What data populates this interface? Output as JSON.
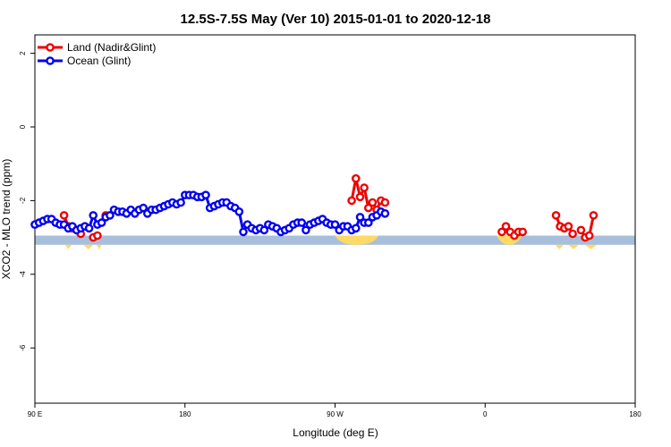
{
  "chart_data": {
    "type": "line",
    "title": "12.5S-7.5S May (Ver 10)   2015-01-01 to 2020-12-18",
    "xlabel": "Longitude (deg E)",
    "ylabel": "XCO2 - MLO trend (ppm)",
    "xlim": [
      90,
      450
    ],
    "ylim": [
      -7.5,
      2.5
    ],
    "x_ticks": [
      {
        "value": 90,
        "label": "90 E"
      },
      {
        "value": 180,
        "label": "180"
      },
      {
        "value": 270,
        "label": "90 W"
      },
      {
        "value": 360,
        "label": "0"
      },
      {
        "value": 450,
        "label": "180"
      }
    ],
    "y_ticks": [
      {
        "value": 2,
        "label": "2"
      },
      {
        "value": 0,
        "label": "0"
      },
      {
        "value": -2,
        "label": "-2"
      },
      {
        "value": -4,
        "label": "-4"
      },
      {
        "value": -6,
        "label": "-6"
      }
    ],
    "grid": false,
    "legend_position": "top-left",
    "series": [
      {
        "name": "Land (Nadir&Glint)",
        "color": "#ee0000",
        "points": [
          [
            107.5,
            -2.4
          ],
          [
            110,
            -2.7
          ],
          [
            112.5,
            -2.75
          ],
          [
            117.5,
            -2.9
          ],
          [
            125,
            -3.0
          ],
          [
            127.5,
            -2.95
          ],
          [
            132.5,
            -2.4
          ],
          [
            280,
            -2.0
          ],
          [
            282.5,
            -1.4
          ],
          [
            285,
            -1.9
          ],
          [
            287.5,
            -1.65
          ],
          [
            290,
            -2.2
          ],
          [
            292.5,
            -2.05
          ],
          [
            295,
            -2.25
          ],
          [
            297.5,
            -2.0
          ],
          [
            300,
            -2.05
          ],
          [
            370,
            -2.85
          ],
          [
            372.5,
            -2.7
          ],
          [
            375,
            -2.85
          ],
          [
            377.5,
            -2.95
          ],
          [
            380,
            -2.85
          ],
          [
            382.5,
            -2.85
          ],
          [
            402.5,
            -2.4
          ],
          [
            405,
            -2.7
          ],
          [
            407.5,
            -2.75
          ],
          [
            410,
            -2.7
          ],
          [
            412.5,
            -2.9
          ],
          [
            417.5,
            -2.8
          ],
          [
            420,
            -3.0
          ],
          [
            422.5,
            -2.95
          ],
          [
            425,
            -2.4
          ]
        ]
      },
      {
        "name": "Ocean (Glint)",
        "color": "#0000ee",
        "points": [
          [
            90,
            -2.65
          ],
          [
            92.5,
            -2.6
          ],
          [
            95,
            -2.55
          ],
          [
            97.5,
            -2.5
          ],
          [
            100,
            -2.5
          ],
          [
            102.5,
            -2.6
          ],
          [
            105,
            -2.65
          ],
          [
            107.5,
            -2.65
          ],
          [
            110,
            -2.75
          ],
          [
            112.5,
            -2.7
          ],
          [
            115,
            -2.8
          ],
          [
            117.5,
            -2.75
          ],
          [
            120,
            -2.7
          ],
          [
            122.5,
            -2.75
          ],
          [
            125,
            -2.4
          ],
          [
            127.5,
            -2.65
          ],
          [
            130,
            -2.6
          ],
          [
            132.5,
            -2.45
          ],
          [
            135,
            -2.4
          ],
          [
            137.5,
            -2.25
          ],
          [
            140,
            -2.3
          ],
          [
            142.5,
            -2.3
          ],
          [
            145,
            -2.35
          ],
          [
            147.5,
            -2.25
          ],
          [
            150,
            -2.35
          ],
          [
            152.5,
            -2.25
          ],
          [
            155,
            -2.2
          ],
          [
            157.5,
            -2.35
          ],
          [
            160,
            -2.25
          ],
          [
            162.5,
            -2.25
          ],
          [
            165,
            -2.2
          ],
          [
            167.5,
            -2.15
          ],
          [
            170,
            -2.1
          ],
          [
            172.5,
            -2.05
          ],
          [
            175,
            -2.1
          ],
          [
            177.5,
            -2.05
          ],
          [
            180,
            -1.85
          ],
          [
            182.5,
            -1.85
          ],
          [
            185,
            -1.85
          ],
          [
            187.5,
            -1.9
          ],
          [
            190,
            -1.9
          ],
          [
            192.5,
            -1.85
          ],
          [
            195,
            -2.2
          ],
          [
            197.5,
            -2.15
          ],
          [
            200,
            -2.1
          ],
          [
            202.5,
            -2.05
          ],
          [
            205,
            -2.05
          ],
          [
            207.5,
            -2.15
          ],
          [
            210,
            -2.2
          ],
          [
            212.5,
            -2.3
          ],
          [
            215,
            -2.85
          ],
          [
            217.5,
            -2.65
          ],
          [
            220,
            -2.75
          ],
          [
            222.5,
            -2.8
          ],
          [
            225,
            -2.75
          ],
          [
            227.5,
            -2.8
          ],
          [
            230,
            -2.65
          ],
          [
            232.5,
            -2.7
          ],
          [
            235,
            -2.75
          ],
          [
            237.5,
            -2.85
          ],
          [
            240,
            -2.8
          ],
          [
            242.5,
            -2.75
          ],
          [
            245,
            -2.65
          ],
          [
            247.5,
            -2.6
          ],
          [
            250,
            -2.6
          ],
          [
            252.5,
            -2.8
          ],
          [
            255,
            -2.65
          ],
          [
            257.5,
            -2.6
          ],
          [
            260,
            -2.55
          ],
          [
            262.5,
            -2.5
          ],
          [
            265,
            -2.6
          ],
          [
            267.5,
            -2.65
          ],
          [
            270,
            -2.65
          ],
          [
            272.5,
            -2.8
          ],
          [
            275,
            -2.7
          ],
          [
            277.5,
            -2.7
          ],
          [
            280,
            -2.8
          ],
          [
            282.5,
            -2.75
          ],
          [
            285,
            -2.45
          ],
          [
            287.5,
            -2.6
          ],
          [
            290,
            -2.6
          ],
          [
            292.5,
            -2.45
          ],
          [
            295,
            -2.4
          ],
          [
            297.5,
            -2.3
          ],
          [
            300,
            -2.35
          ]
        ]
      }
    ],
    "land_band": {
      "y_range": [
        -3.2,
        -2.95
      ],
      "ocean_color": "#a8bfdc",
      "land_color": "#ffd966"
    }
  }
}
